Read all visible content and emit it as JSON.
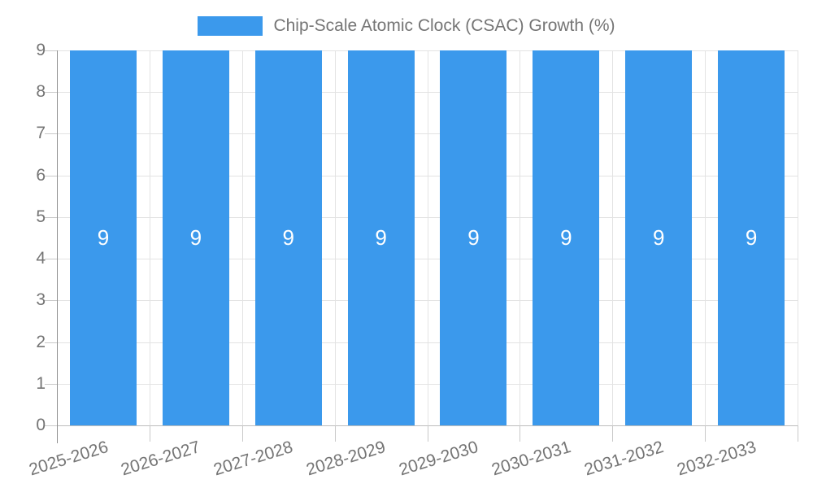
{
  "legend": {
    "label": "Chip-Scale Atomic Clock (CSAC) Growth (%)",
    "position": "top",
    "swatch_icon": "legend-swatch"
  },
  "colors": {
    "bar": "#3B99EC",
    "axis_text": "#757575",
    "value_label": "#ffffff",
    "gridline": "#e3e3e3",
    "baseline": "#bdbdbd",
    "axis_line": "#8f8f8f",
    "tick_mark": "#c9c9c9",
    "background": "#ffffff"
  },
  "chart_data": {
    "type": "bar",
    "title": "",
    "categories": [
      "2025-2026",
      "2026-2027",
      "2027-2028",
      "2028-2029",
      "2029-2030",
      "2030-2031",
      "2031-2032",
      "2032-2033"
    ],
    "series": [
      {
        "name": "Chip-Scale Atomic Clock (CSAC) Growth (%)",
        "values": [
          9,
          9,
          9,
          9,
          9,
          9,
          9,
          9
        ]
      }
    ],
    "value_labels": [
      "9",
      "9",
      "9",
      "9",
      "9",
      "9",
      "9",
      "9"
    ],
    "xlabel": "",
    "ylabel": "",
    "ylim": [
      0,
      9
    ],
    "yticks": [
      0,
      1,
      2,
      3,
      4,
      5,
      6,
      7,
      8,
      9
    ],
    "grid": true,
    "legend_position": "top",
    "x_label_rotation_deg": -17
  }
}
